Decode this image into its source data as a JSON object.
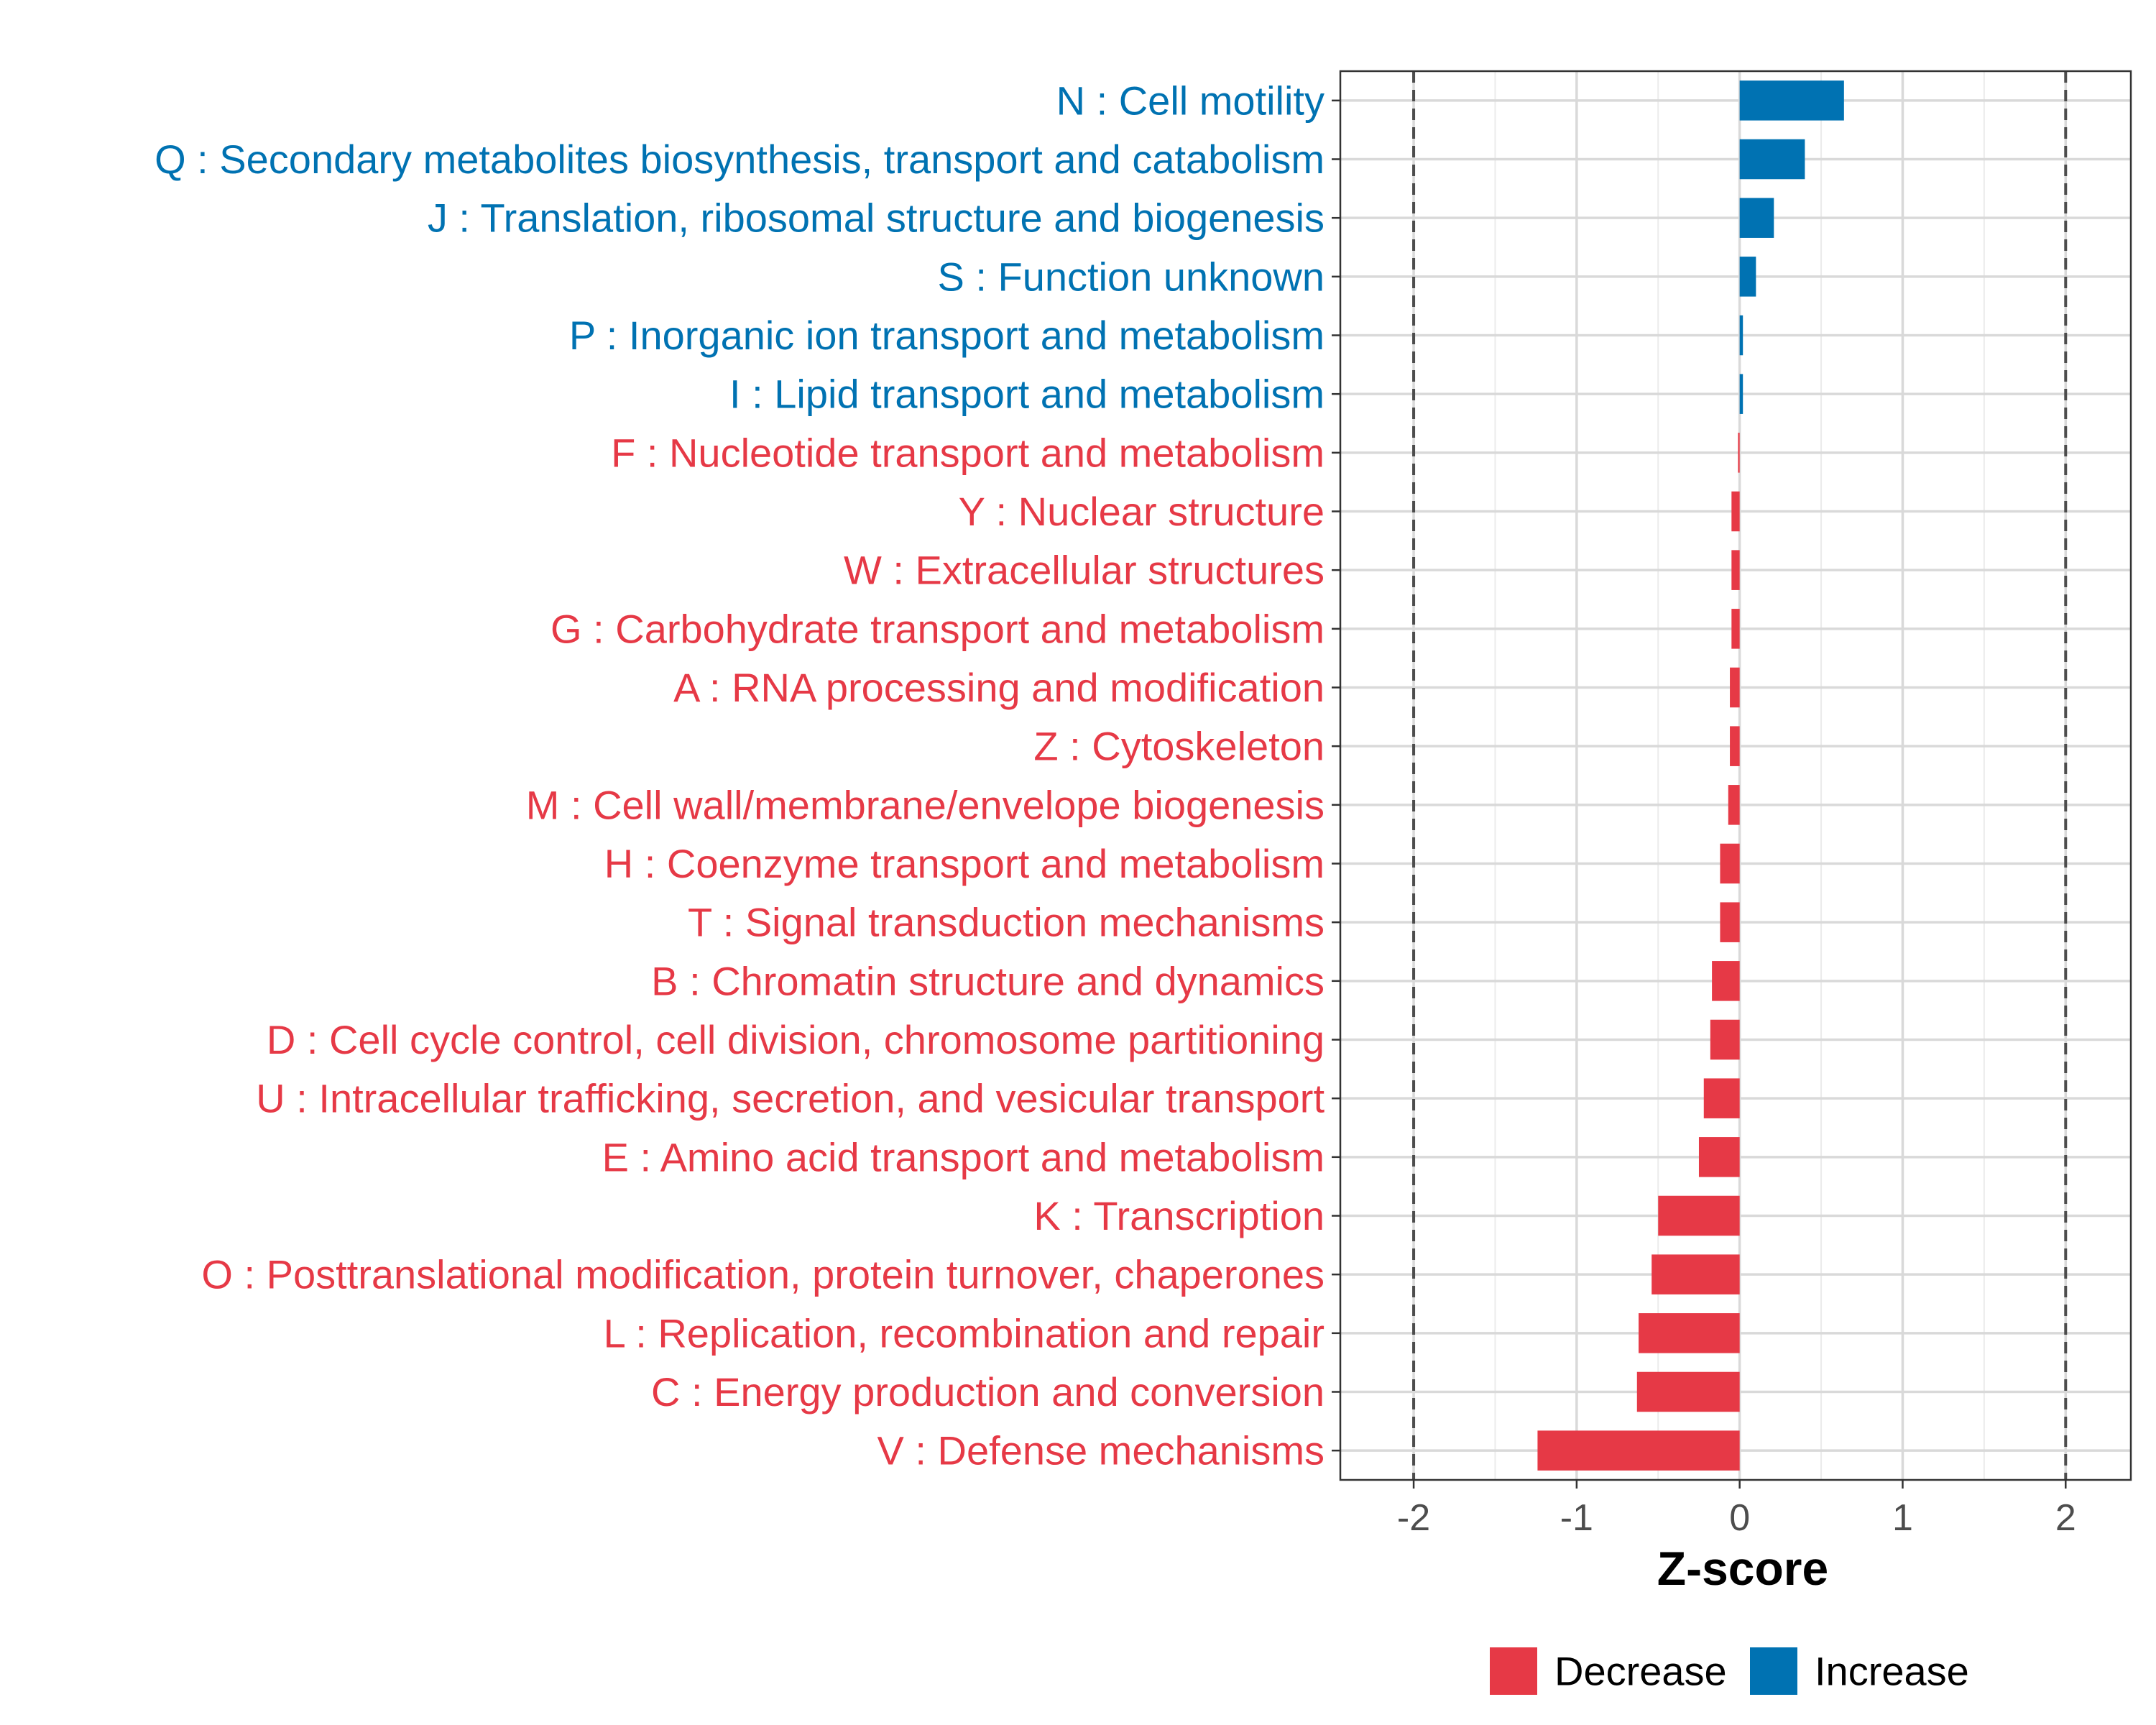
{
  "chart_data": {
    "type": "bar",
    "orientation": "horizontal",
    "title": "",
    "xlabel": "Z-score",
    "ylabel": "",
    "xlim": [
      -2.45,
      2.4
    ],
    "xticks": [
      -2,
      -1,
      0,
      1,
      2
    ],
    "xtick_labels": [
      "-2",
      "-1",
      "0",
      "1",
      "2"
    ],
    "reference_lines": [
      -2,
      2
    ],
    "grid": true,
    "colors": {
      "Decrease": "#e63946",
      "Increase": "#0072b2"
    },
    "categories": [
      "N : Cell motility",
      "Q : Secondary metabolites biosynthesis, transport and catabolism",
      "J : Translation, ribosomal structure and biogenesis",
      "S : Function unknown",
      "P : Inorganic ion transport and metabolism",
      "I : Lipid transport and metabolism",
      "F : Nucleotide transport and metabolism",
      "Y : Nuclear structure",
      "W : Extracellular structures",
      "G : Carbohydrate transport and metabolism",
      "A : RNA processing and modification",
      "Z : Cytoskeleton",
      "M : Cell wall/membrane/envelope biogenesis",
      "H : Coenzyme transport and metabolism",
      "T : Signal transduction mechanisms",
      "B : Chromatin structure and dynamics",
      "D : Cell cycle control, cell division, chromosome partitioning",
      "U : Intracellular trafficking, secretion, and vesicular transport",
      "E : Amino acid transport and metabolism",
      "K : Transcription",
      "O : Posttranslational modification, protein turnover, chaperones",
      "L : Replication, recombination and repair",
      "C : Energy production and conversion",
      "V : Defense mechanisms"
    ],
    "values": [
      0.64,
      0.4,
      0.21,
      0.1,
      0.02,
      0.02,
      -0.01,
      -0.05,
      -0.05,
      -0.05,
      -0.06,
      -0.06,
      -0.07,
      -0.12,
      -0.12,
      -0.17,
      -0.18,
      -0.22,
      -0.25,
      -0.5,
      -0.54,
      -0.62,
      -0.63,
      -1.24
    ],
    "groups": [
      "Increase",
      "Increase",
      "Increase",
      "Increase",
      "Increase",
      "Increase",
      "Decrease",
      "Decrease",
      "Decrease",
      "Decrease",
      "Decrease",
      "Decrease",
      "Decrease",
      "Decrease",
      "Decrease",
      "Decrease",
      "Decrease",
      "Decrease",
      "Decrease",
      "Decrease",
      "Decrease",
      "Decrease",
      "Decrease",
      "Decrease"
    ],
    "legend": {
      "position": "bottom",
      "entries": [
        {
          "label": "Decrease",
          "color": "#e63946"
        },
        {
          "label": "Increase",
          "color": "#0072b2"
        }
      ]
    }
  }
}
